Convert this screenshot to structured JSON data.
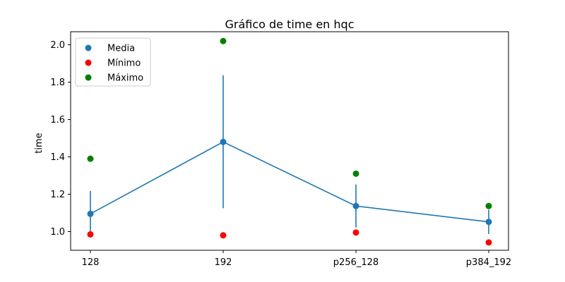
{
  "chart_data": {
    "type": "scatter",
    "title": "Gráfico de time en hqc",
    "xlabel": "",
    "ylabel": "time",
    "categories": [
      "128",
      "192",
      "p256_128",
      "p384_192"
    ],
    "ylim": [
      0.9,
      2.07
    ],
    "yticks": [
      "1.0",
      "1.2",
      "1.4",
      "1.6",
      "1.8",
      "2.0"
    ],
    "grid": false,
    "legend_position": "top-left",
    "series": [
      {
        "name": "Media",
        "color": "#1f77b4",
        "values": [
          1.095,
          1.48,
          1.137,
          1.052
        ],
        "line": true
      },
      {
        "name": "Mínimo",
        "color": "#ff0000",
        "values": [
          0.985,
          0.98,
          0.995,
          0.942
        ]
      },
      {
        "name": "Máximo",
        "color": "#008000",
        "values": [
          1.39,
          2.02,
          1.31,
          1.137
        ]
      }
    ],
    "error_bars": {
      "series": "Media",
      "low": [
        0.975,
        1.125,
        1.022,
        0.987
      ],
      "high": [
        1.217,
        1.837,
        1.252,
        1.117
      ]
    }
  }
}
